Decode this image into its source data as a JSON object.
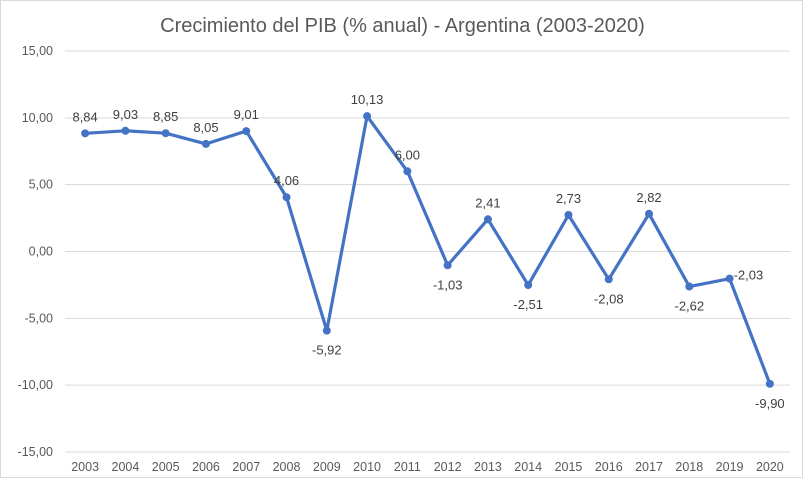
{
  "chart_data": {
    "type": "line",
    "title": "Crecimiento del PIB (% anual) - Argentina (2003-2020)",
    "xlabel": "",
    "ylabel": "",
    "categories": [
      "2003",
      "2004",
      "2005",
      "2006",
      "2007",
      "2008",
      "2009",
      "2010",
      "2011",
      "2012",
      "2013",
      "2014",
      "2015",
      "2016",
      "2017",
      "2018",
      "2019",
      "2020"
    ],
    "values": [
      8.84,
      9.03,
      8.85,
      8.05,
      9.01,
      4.06,
      -5.92,
      10.13,
      6.0,
      -1.03,
      2.41,
      -2.51,
      2.73,
      -2.08,
      2.82,
      -2.62,
      -2.03,
      -9.9
    ],
    "data_labels": [
      "8,84",
      "9,03",
      "8,85",
      "8,05",
      "9,01",
      "4,06",
      "-5,92",
      "10,13",
      "6,00",
      "-1,03",
      "2,41",
      "-2,51",
      "2,73",
      "-2,08",
      "2,82",
      "-2,62",
      "-2,03",
      "-9,90"
    ],
    "label_positions": [
      "above",
      "above",
      "above",
      "above",
      "above",
      "above",
      "below",
      "above",
      "above",
      "below",
      "above",
      "below",
      "above",
      "below",
      "above",
      "below",
      "right",
      "below"
    ],
    "yticks": [
      15,
      10,
      5,
      0,
      -5,
      -10,
      -15
    ],
    "ytick_labels": [
      "15,00",
      "10,00",
      "5,00",
      "0,00",
      "-5,00",
      "-10,00",
      "-15,00"
    ],
    "ylim": [
      -15,
      15
    ],
    "grid": true,
    "legend": "none",
    "line_color": "#4472C4",
    "grid_color": "#d9d9d9"
  }
}
